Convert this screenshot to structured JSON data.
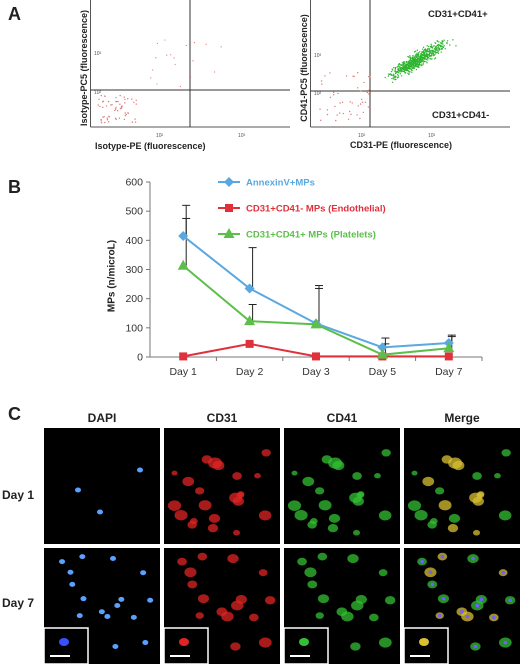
{
  "panels": {
    "a": {
      "letter": "A"
    },
    "b": {
      "letter": "B"
    },
    "c": {
      "letter": "C"
    }
  },
  "flow": {
    "left": {
      "ylabel": "Isotype-PC5 (fluorescence)",
      "xlabel": "Isotype-PE (fluorescence)",
      "x_ticks": [
        "10²",
        "10³"
      ],
      "y_ticks": [
        "10³",
        "10²"
      ],
      "dot_color": "#e07878"
    },
    "right": {
      "ylabel": "CD41-PC5 (fluorescence)",
      "xlabel": "CD31-PE (fluorescence)",
      "x_ticks": [
        "10²",
        "10³"
      ],
      "y_ticks": [
        "10³",
        "10²"
      ],
      "upper_right_label": "CD31+CD41+",
      "lower_right_label": "CD31+CD41-",
      "dot_color_main": "#2fb52f",
      "dot_color_minor": "#e07878"
    }
  },
  "chart_data": {
    "type": "line",
    "title": "",
    "xlabel": "",
    "ylabel": "MPs (n/microL)",
    "categories": [
      "Day 1",
      "Day 2",
      "Day 3",
      "Day 5",
      "Day 7"
    ],
    "ylim": [
      0,
      600
    ],
    "yticks": [
      0,
      100,
      200,
      300,
      400,
      500,
      600
    ],
    "legend_position": "top-right",
    "grid": false,
    "series": [
      {
        "name": "AnnexinV+MPs",
        "color": "#5aa8e0",
        "marker": "diamond",
        "values": [
          415,
          235,
          115,
          33,
          48
        ],
        "error_upper": [
          520,
          375,
          245,
          65,
          75
        ]
      },
      {
        "name": "CD31+CD41- MPs (Endothelial)",
        "color": "#e0303a",
        "marker": "square",
        "values": [
          2,
          45,
          2,
          2,
          2
        ],
        "error_upper": [
          2,
          45,
          2,
          2,
          2
        ]
      },
      {
        "name": "CD31+CD41+ MPs (Platelets)",
        "color": "#5cbf4a",
        "marker": "triangle",
        "values": [
          313,
          123,
          112,
          8,
          30
        ],
        "error_upper": [
          475,
          180,
          235,
          45,
          70
        ]
      }
    ]
  },
  "micro": {
    "columns": [
      "DAPI",
      "CD31",
      "CD41",
      "Merge"
    ],
    "rows": [
      "Day 1",
      "Day 7"
    ]
  }
}
